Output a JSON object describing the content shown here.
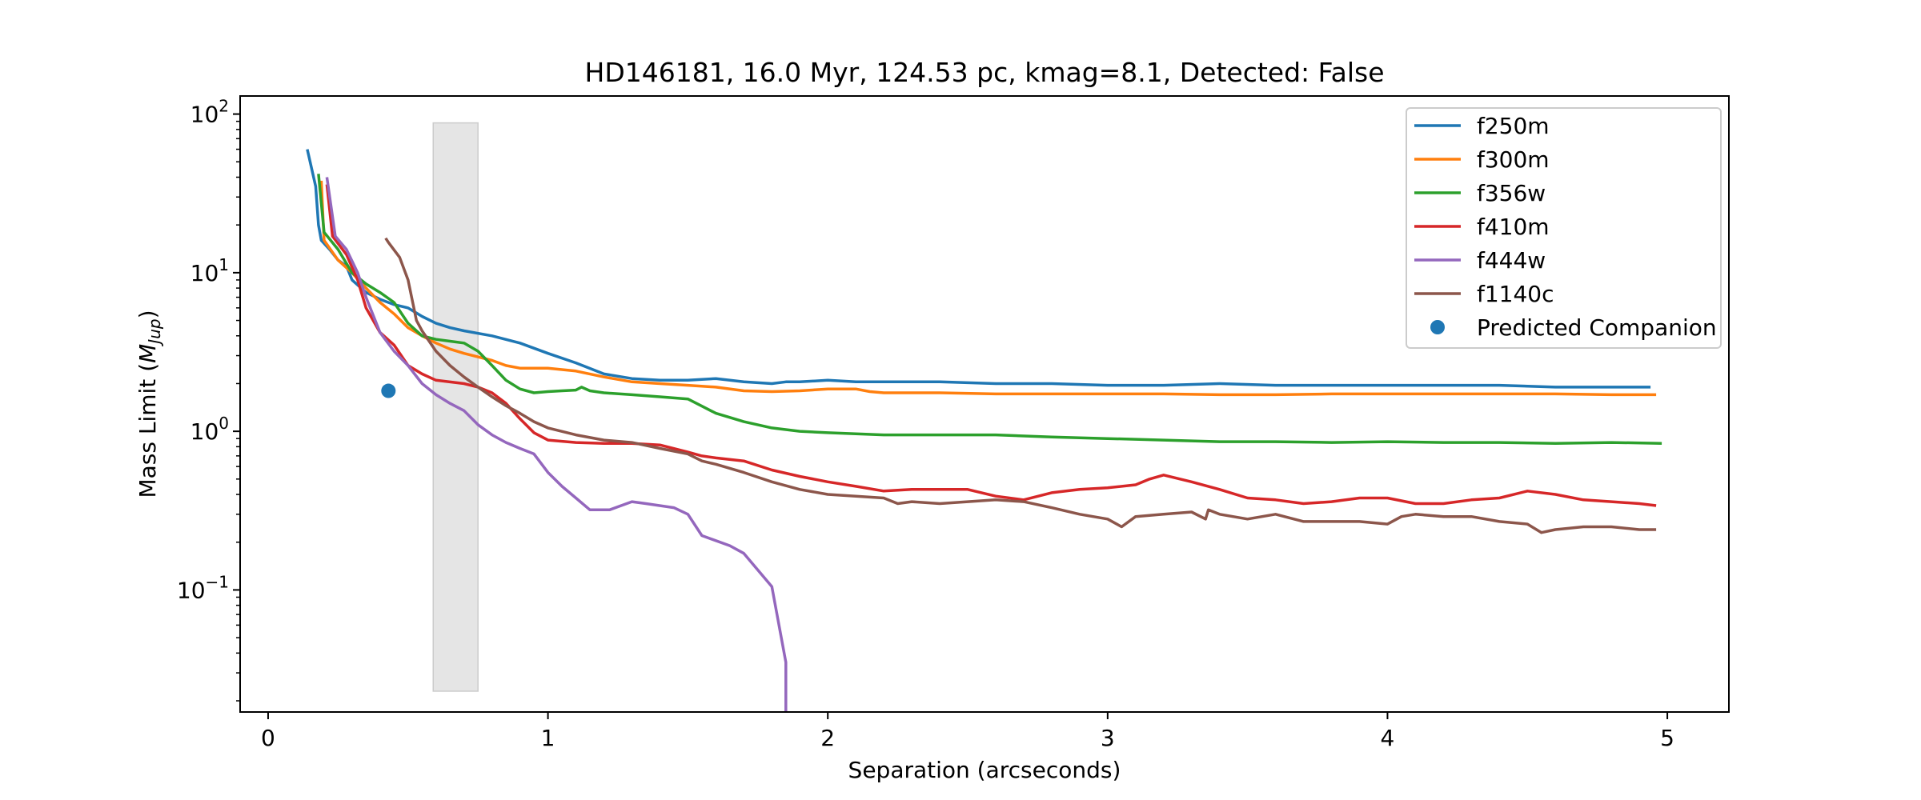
{
  "chart_data": {
    "type": "line",
    "title": "HD146181, 16.0 Myr, 124.53 pc, kmag=8.1, Detected: False",
    "xlabel": "Separation (arcseconds)",
    "ylabel": "Mass Limit (M_Jup)",
    "ylabel_prefix": "Mass Limit (",
    "ylabel_italic": "M",
    "ylabel_sub": "Jup",
    "ylabel_suffix": ")",
    "xlim": [
      -0.1,
      5.22
    ],
    "ylim": [
      0.017,
      130
    ],
    "yscale": "log",
    "grid": false,
    "legend_position": "top-right",
    "x_ticks": [
      {
        "value": 0,
        "label": "0"
      },
      {
        "value": 1,
        "label": "1"
      },
      {
        "value": 2,
        "label": "2"
      },
      {
        "value": 3,
        "label": "3"
      },
      {
        "value": 4,
        "label": "4"
      },
      {
        "value": 5,
        "label": "5"
      }
    ],
    "y_ticks": [
      {
        "value": 0.1,
        "base": "10",
        "exp": "−1"
      },
      {
        "value": 1,
        "base": "10",
        "exp": "0"
      },
      {
        "value": 10,
        "base": "10",
        "exp": "1"
      },
      {
        "value": 100,
        "base": "10",
        "exp": "2"
      }
    ],
    "shaded_region": {
      "x": [
        0.59,
        0.75
      ],
      "y": [
        0.023,
        88
      ],
      "color": "#e5e5e5"
    },
    "series": [
      {
        "name": "f250m",
        "color": "#1f77b4",
        "points": [
          [
            0.14,
            60
          ],
          [
            0.17,
            35
          ],
          [
            0.18,
            20
          ],
          [
            0.19,
            16
          ],
          [
            0.22,
            14
          ],
          [
            0.25,
            12
          ],
          [
            0.28,
            11
          ],
          [
            0.3,
            9
          ],
          [
            0.35,
            7.5
          ],
          [
            0.4,
            6.8
          ],
          [
            0.45,
            6.3
          ],
          [
            0.5,
            6
          ],
          [
            0.55,
            5.3
          ],
          [
            0.6,
            4.8
          ],
          [
            0.65,
            4.5
          ],
          [
            0.7,
            4.3
          ],
          [
            0.8,
            4
          ],
          [
            0.9,
            3.6
          ],
          [
            1.0,
            3.1
          ],
          [
            1.1,
            2.7
          ],
          [
            1.2,
            2.3
          ],
          [
            1.3,
            2.15
          ],
          [
            1.4,
            2.1
          ],
          [
            1.5,
            2.1
          ],
          [
            1.6,
            2.15
          ],
          [
            1.7,
            2.05
          ],
          [
            1.8,
            2.0
          ],
          [
            1.85,
            2.05
          ],
          [
            1.9,
            2.05
          ],
          [
            2.0,
            2.1
          ],
          [
            2.1,
            2.05
          ],
          [
            2.2,
            2.05
          ],
          [
            2.4,
            2.05
          ],
          [
            2.6,
            2.0
          ],
          [
            2.8,
            2.0
          ],
          [
            3.0,
            1.95
          ],
          [
            3.2,
            1.95
          ],
          [
            3.4,
            2.0
          ],
          [
            3.6,
            1.95
          ],
          [
            3.8,
            1.95
          ],
          [
            4.0,
            1.95
          ],
          [
            4.2,
            1.95
          ],
          [
            4.4,
            1.95
          ],
          [
            4.6,
            1.9
          ],
          [
            4.8,
            1.9
          ],
          [
            4.94,
            1.9
          ]
        ]
      },
      {
        "name": "f300m",
        "color": "#ff7f0e",
        "points": [
          [
            0.19,
            38
          ],
          [
            0.2,
            16
          ],
          [
            0.25,
            12
          ],
          [
            0.3,
            10
          ],
          [
            0.35,
            8
          ],
          [
            0.4,
            6.5
          ],
          [
            0.45,
            5.5
          ],
          [
            0.5,
            4.5
          ],
          [
            0.55,
            4
          ],
          [
            0.6,
            3.6
          ],
          [
            0.65,
            3.3
          ],
          [
            0.7,
            3.1
          ],
          [
            0.8,
            2.8
          ],
          [
            0.85,
            2.6
          ],
          [
            0.9,
            2.5
          ],
          [
            1.0,
            2.5
          ],
          [
            1.1,
            2.4
          ],
          [
            1.2,
            2.2
          ],
          [
            1.3,
            2.05
          ],
          [
            1.4,
            2.0
          ],
          [
            1.5,
            1.95
          ],
          [
            1.6,
            1.9
          ],
          [
            1.7,
            1.8
          ],
          [
            1.8,
            1.78
          ],
          [
            1.9,
            1.8
          ],
          [
            2.0,
            1.85
          ],
          [
            2.1,
            1.85
          ],
          [
            2.15,
            1.78
          ],
          [
            2.2,
            1.75
          ],
          [
            2.4,
            1.75
          ],
          [
            2.6,
            1.72
          ],
          [
            2.8,
            1.72
          ],
          [
            3.0,
            1.72
          ],
          [
            3.2,
            1.72
          ],
          [
            3.4,
            1.7
          ],
          [
            3.6,
            1.7
          ],
          [
            3.8,
            1.72
          ],
          [
            4.0,
            1.72
          ],
          [
            4.2,
            1.72
          ],
          [
            4.4,
            1.72
          ],
          [
            4.6,
            1.72
          ],
          [
            4.8,
            1.7
          ],
          [
            4.96,
            1.7
          ]
        ]
      },
      {
        "name": "f356w",
        "color": "#2ca02c",
        "points": [
          [
            0.18,
            42
          ],
          [
            0.2,
            18
          ],
          [
            0.25,
            14
          ],
          [
            0.3,
            10
          ],
          [
            0.35,
            8.5
          ],
          [
            0.4,
            7.5
          ],
          [
            0.45,
            6.5
          ],
          [
            0.5,
            4.8
          ],
          [
            0.55,
            4.0
          ],
          [
            0.6,
            3.8
          ],
          [
            0.65,
            3.7
          ],
          [
            0.7,
            3.6
          ],
          [
            0.75,
            3.2
          ],
          [
            0.8,
            2.6
          ],
          [
            0.85,
            2.1
          ],
          [
            0.9,
            1.85
          ],
          [
            0.95,
            1.75
          ],
          [
            1.0,
            1.78
          ],
          [
            1.05,
            1.8
          ],
          [
            1.1,
            1.82
          ],
          [
            1.12,
            1.9
          ],
          [
            1.15,
            1.8
          ],
          [
            1.2,
            1.75
          ],
          [
            1.3,
            1.7
          ],
          [
            1.4,
            1.65
          ],
          [
            1.5,
            1.6
          ],
          [
            1.6,
            1.3
          ],
          [
            1.7,
            1.15
          ],
          [
            1.8,
            1.05
          ],
          [
            1.9,
            1.0
          ],
          [
            2.0,
            0.98
          ],
          [
            2.2,
            0.95
          ],
          [
            2.4,
            0.95
          ],
          [
            2.6,
            0.95
          ],
          [
            2.8,
            0.92
          ],
          [
            3.0,
            0.9
          ],
          [
            3.2,
            0.88
          ],
          [
            3.4,
            0.86
          ],
          [
            3.6,
            0.86
          ],
          [
            3.8,
            0.85
          ],
          [
            4.0,
            0.86
          ],
          [
            4.2,
            0.85
          ],
          [
            4.4,
            0.85
          ],
          [
            4.6,
            0.84
          ],
          [
            4.8,
            0.85
          ],
          [
            4.98,
            0.84
          ]
        ]
      },
      {
        "name": "f410m",
        "color": "#d62728",
        "points": [
          [
            0.21,
            36
          ],
          [
            0.23,
            17
          ],
          [
            0.28,
            13
          ],
          [
            0.32,
            9
          ],
          [
            0.35,
            6
          ],
          [
            0.4,
            4.2
          ],
          [
            0.45,
            3.5
          ],
          [
            0.5,
            2.6
          ],
          [
            0.55,
            2.3
          ],
          [
            0.6,
            2.1
          ],
          [
            0.7,
            2.0
          ],
          [
            0.75,
            1.9
          ],
          [
            0.8,
            1.75
          ],
          [
            0.85,
            1.5
          ],
          [
            0.9,
            1.2
          ],
          [
            0.95,
            0.98
          ],
          [
            1.0,
            0.88
          ],
          [
            1.1,
            0.85
          ],
          [
            1.2,
            0.84
          ],
          [
            1.3,
            0.84
          ],
          [
            1.4,
            0.82
          ],
          [
            1.5,
            0.74
          ],
          [
            1.55,
            0.7
          ],
          [
            1.6,
            0.68
          ],
          [
            1.7,
            0.65
          ],
          [
            1.8,
            0.57
          ],
          [
            1.9,
            0.52
          ],
          [
            2.0,
            0.48
          ],
          [
            2.1,
            0.45
          ],
          [
            2.2,
            0.42
          ],
          [
            2.3,
            0.43
          ],
          [
            2.4,
            0.43
          ],
          [
            2.5,
            0.43
          ],
          [
            2.6,
            0.39
          ],
          [
            2.7,
            0.37
          ],
          [
            2.8,
            0.41
          ],
          [
            2.9,
            0.43
          ],
          [
            3.0,
            0.44
          ],
          [
            3.1,
            0.46
          ],
          [
            3.15,
            0.5
          ],
          [
            3.2,
            0.53
          ],
          [
            3.3,
            0.48
          ],
          [
            3.4,
            0.43
          ],
          [
            3.5,
            0.38
          ],
          [
            3.6,
            0.37
          ],
          [
            3.7,
            0.35
          ],
          [
            3.8,
            0.36
          ],
          [
            3.9,
            0.38
          ],
          [
            4.0,
            0.38
          ],
          [
            4.1,
            0.35
          ],
          [
            4.2,
            0.35
          ],
          [
            4.3,
            0.37
          ],
          [
            4.4,
            0.38
          ],
          [
            4.5,
            0.42
          ],
          [
            4.6,
            0.4
          ],
          [
            4.7,
            0.37
          ],
          [
            4.8,
            0.36
          ],
          [
            4.9,
            0.35
          ],
          [
            4.96,
            0.34
          ]
        ]
      },
      {
        "name": "f444w",
        "color": "#9467bd",
        "points": [
          [
            0.21,
            40
          ],
          [
            0.24,
            17
          ],
          [
            0.28,
            14
          ],
          [
            0.32,
            10
          ],
          [
            0.35,
            7
          ],
          [
            0.4,
            4.2
          ],
          [
            0.45,
            3.2
          ],
          [
            0.5,
            2.6
          ],
          [
            0.55,
            2.0
          ],
          [
            0.6,
            1.7
          ],
          [
            0.65,
            1.5
          ],
          [
            0.7,
            1.35
          ],
          [
            0.75,
            1.1
          ],
          [
            0.8,
            0.95
          ],
          [
            0.85,
            0.85
          ],
          [
            0.9,
            0.78
          ],
          [
            0.95,
            0.72
          ],
          [
            1.0,
            0.55
          ],
          [
            1.05,
            0.45
          ],
          [
            1.1,
            0.38
          ],
          [
            1.15,
            0.32
          ],
          [
            1.22,
            0.32
          ],
          [
            1.3,
            0.36
          ],
          [
            1.35,
            0.35
          ],
          [
            1.45,
            0.33
          ],
          [
            1.5,
            0.3
          ],
          [
            1.55,
            0.22
          ],
          [
            1.65,
            0.19
          ],
          [
            1.7,
            0.17
          ],
          [
            1.8,
            0.105
          ],
          [
            1.85,
            0.035
          ],
          [
            1.85,
            0.0162
          ]
        ]
      },
      {
        "name": "f1140c",
        "color": "#8c564b",
        "points": [
          [
            0.42,
            16.5
          ],
          [
            0.43,
            15.5
          ],
          [
            0.47,
            12.5
          ],
          [
            0.5,
            9
          ],
          [
            0.53,
            5
          ],
          [
            0.55,
            4.3
          ],
          [
            0.6,
            3.2
          ],
          [
            0.65,
            2.6
          ],
          [
            0.7,
            2.2
          ],
          [
            0.75,
            1.9
          ],
          [
            0.8,
            1.65
          ],
          [
            0.85,
            1.45
          ],
          [
            0.9,
            1.3
          ],
          [
            0.95,
            1.15
          ],
          [
            1.0,
            1.05
          ],
          [
            1.1,
            0.95
          ],
          [
            1.2,
            0.88
          ],
          [
            1.3,
            0.85
          ],
          [
            1.4,
            0.78
          ],
          [
            1.5,
            0.72
          ],
          [
            1.55,
            0.65
          ],
          [
            1.6,
            0.62
          ],
          [
            1.7,
            0.55
          ],
          [
            1.8,
            0.48
          ],
          [
            1.9,
            0.43
          ],
          [
            2.0,
            0.4
          ],
          [
            2.1,
            0.39
          ],
          [
            2.2,
            0.38
          ],
          [
            2.25,
            0.35
          ],
          [
            2.3,
            0.36
          ],
          [
            2.4,
            0.35
          ],
          [
            2.5,
            0.36
          ],
          [
            2.6,
            0.37
          ],
          [
            2.7,
            0.36
          ],
          [
            2.8,
            0.33
          ],
          [
            2.9,
            0.3
          ],
          [
            3.0,
            0.28
          ],
          [
            3.05,
            0.25
          ],
          [
            3.1,
            0.29
          ],
          [
            3.2,
            0.3
          ],
          [
            3.3,
            0.31
          ],
          [
            3.35,
            0.28
          ],
          [
            3.36,
            0.32
          ],
          [
            3.4,
            0.3
          ],
          [
            3.5,
            0.28
          ],
          [
            3.6,
            0.3
          ],
          [
            3.7,
            0.27
          ],
          [
            3.8,
            0.27
          ],
          [
            3.9,
            0.27
          ],
          [
            4.0,
            0.26
          ],
          [
            4.05,
            0.29
          ],
          [
            4.1,
            0.3
          ],
          [
            4.2,
            0.29
          ],
          [
            4.3,
            0.29
          ],
          [
            4.4,
            0.27
          ],
          [
            4.5,
            0.26
          ],
          [
            4.55,
            0.23
          ],
          [
            4.6,
            0.24
          ],
          [
            4.7,
            0.25
          ],
          [
            4.8,
            0.25
          ],
          [
            4.9,
            0.24
          ],
          [
            4.96,
            0.24
          ]
        ]
      },
      {
        "name": "Predicted Companion",
        "type": "scatter",
        "color": "#1f77b4",
        "points": [
          [
            0.43,
            1.8
          ]
        ]
      }
    ]
  }
}
